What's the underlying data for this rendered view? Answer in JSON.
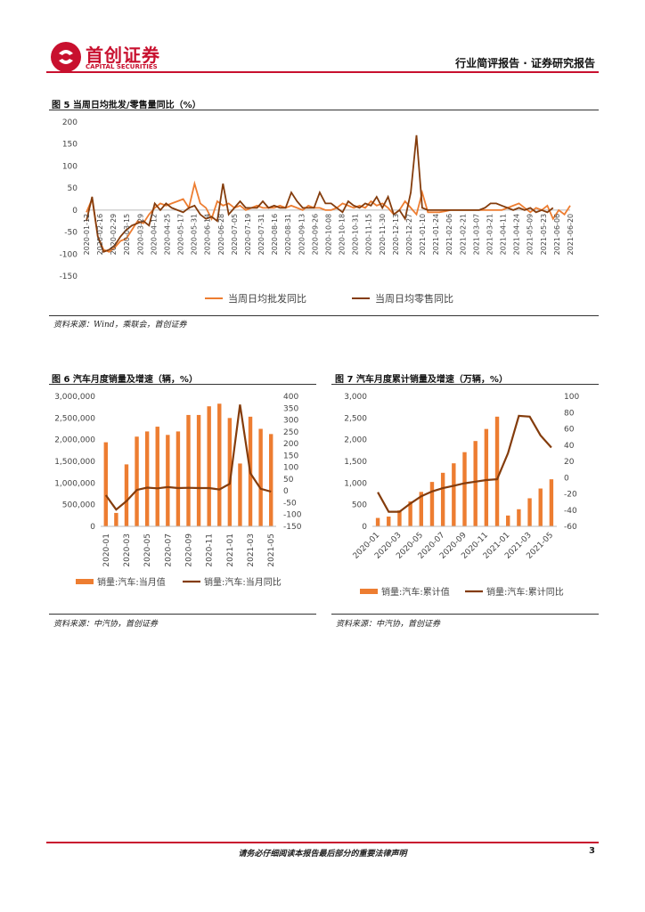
{
  "header": {
    "logo_cn": "首创证券",
    "logo_en": "CAPITAL SECURITIES",
    "report_type": "行业简评报告 · 证券研究报告",
    "brand_color": "#c8102e"
  },
  "colors": {
    "orange": "#ed7d31",
    "brown": "#843c0c"
  },
  "chart_data": [
    {
      "id": "fig5",
      "type": "line",
      "title": "图 5 当周日均批发/零售量同比（%）",
      "source": "资料来源：Wind，乘联会，首创证券",
      "ylim": [
        -150,
        200
      ],
      "yticks": [
        200,
        150,
        100,
        50,
        0,
        -50,
        -100,
        -150
      ],
      "x_tick_labels": [
        "2020-01-12",
        "2020-02-16",
        "2020-02-29",
        "2020-03-15",
        "2020-03-29",
        "2020-04-12",
        "2020-04-25",
        "2020-05-17",
        "2020-05-31",
        "2020-06-14",
        "2020-06-28",
        "2020-07-05",
        "2020-07-19",
        "2020-07-31",
        "2020-08-16",
        "2020-08-31",
        "2020-09-13",
        "2020-09-26",
        "2020-10-08",
        "2020-10-18",
        "2020-10-31",
        "2020-11-15",
        "2020-11-30",
        "2020-12-13",
        "2020-12-27",
        "2021-01-10",
        "2021-01-24",
        "2021-02-06",
        "2021-02-21",
        "2021-03-07",
        "2021-03-21",
        "2021-04-11",
        "2021-04-24",
        "2021-05-09",
        "2021-05-23",
        "2021-06-06",
        "2021-06-20"
      ],
      "series": [
        {
          "name": "当周日均批发同比",
          "color": "#ed7d31",
          "values": [
            -5,
            25,
            -60,
            -90,
            -95,
            -85,
            -70,
            -65,
            -45,
            -25,
            -30,
            -10,
            5,
            15,
            10,
            15,
            20,
            25,
            5,
            60,
            15,
            5,
            -20,
            20,
            10,
            15,
            5,
            10,
            0,
            5,
            10,
            5,
            5,
            5,
            10,
            5,
            10,
            5,
            0,
            10,
            5,
            5,
            0,
            0,
            5,
            15,
            10,
            5,
            10,
            5,
            20,
            10,
            15,
            5,
            -10,
            0,
            20,
            5,
            -10,
            40,
            -5,
            -5,
            -5,
            -3,
            0,
            0,
            0,
            0,
            0,
            0,
            0,
            0,
            0,
            0,
            5,
            10,
            15,
            5,
            -5,
            5,
            0,
            10,
            -20,
            0,
            -10,
            10
          ]
        },
        {
          "name": "当周日均零售同比",
          "color": "#843c0c",
          "values": [
            -25,
            30,
            -60,
            -95,
            -90,
            -80,
            -60,
            -45,
            -35,
            -30,
            -25,
            -35,
            15,
            0,
            15,
            5,
            0,
            -5,
            5,
            10,
            -10,
            -20,
            -15,
            -25,
            60,
            -10,
            5,
            20,
            5,
            5,
            5,
            20,
            5,
            10,
            5,
            5,
            40,
            20,
            5,
            5,
            5,
            40,
            15,
            15,
            5,
            -5,
            20,
            10,
            5,
            15,
            10,
            30,
            5,
            30,
            -10,
            0,
            -20,
            40,
            170,
            5,
            0,
            0,
            0,
            0,
            0,
            0,
            0,
            0,
            0,
            0,
            5,
            15,
            15,
            10,
            5,
            0,
            5,
            0,
            5,
            -5,
            0,
            -5,
            5
          ]
        }
      ]
    },
    {
      "id": "fig6",
      "type": "bar+line",
      "title": "图 6 汽车月度销量及增速（辆，%）",
      "source": "资料来源：中汽协，首创证券",
      "categories": [
        "2020-01",
        "2020-02",
        "2020-03",
        "2020-04",
        "2020-05",
        "2020-06",
        "2020-07",
        "2020-08",
        "2020-09",
        "2020-10",
        "2020-11",
        "2020-12",
        "2021-01",
        "2021-02",
        "2021-03",
        "2021-04",
        "2021-05"
      ],
      "x_tick_labels": [
        "2020-01",
        "2020-03",
        "2020-05",
        "2020-07",
        "2020-09",
        "2020-11",
        "2021-01",
        "2021-03",
        "2021-05"
      ],
      "left_ylim": [
        0,
        3000000
      ],
      "left_yticks": [
        "3,000,000",
        "2,500,000",
        "2,000,000",
        "1,500,000",
        "1,000,000",
        "500,000",
        "0"
      ],
      "right_ylim": [
        -150,
        400
      ],
      "right_yticks": [
        "400",
        "350",
        "300",
        "250",
        "200",
        "150",
        "100",
        "50",
        "0",
        "-50",
        "-100",
        "-150"
      ],
      "series": [
        {
          "name": "销量:汽车:当月值",
          "kind": "bar",
          "axis": "left",
          "color": "#ed7d31",
          "values": [
            1940000,
            310000,
            1430000,
            2070000,
            2190000,
            2300000,
            2110000,
            2190000,
            2570000,
            2570000,
            2770000,
            2830000,
            2500000,
            1450000,
            2530000,
            2250000,
            2130000
          ]
        },
        {
          "name": "销量:汽车:当月同比",
          "kind": "line",
          "axis": "right",
          "color": "#843c0c",
          "values": [
            -18,
            -79,
            -43,
            4,
            14,
            11,
            16,
            12,
            13,
            12,
            12,
            6,
            30,
            365,
            75,
            9,
            -3
          ]
        }
      ]
    },
    {
      "id": "fig7",
      "type": "bar+line",
      "title": "图 7 汽车月度累计销量及增速（万辆，%）",
      "source": "资料来源：中汽协，首创证券",
      "categories": [
        "2020-01",
        "2020-02",
        "2020-03",
        "2020-04",
        "2020-05",
        "2020-06",
        "2020-07",
        "2020-08",
        "2020-09",
        "2020-10",
        "2020-11",
        "2020-12",
        "2021-01",
        "2021-02",
        "2021-03",
        "2021-04",
        "2021-05"
      ],
      "x_tick_labels": [
        "2020-01",
        "2020-03",
        "2020-05",
        "2020-07",
        "2020-09",
        "2020-11",
        "2021-01",
        "2021-03",
        "2021-05"
      ],
      "left_ylim": [
        0,
        3000
      ],
      "left_yticks": [
        "3,000",
        "2,500",
        "2,000",
        "1,500",
        "1,000",
        "500",
        "0"
      ],
      "right_ylim": [
        -60,
        100
      ],
      "right_yticks": [
        "100",
        "80",
        "60",
        "40",
        "20",
        "0",
        "-20",
        "-40",
        "-60"
      ],
      "series": [
        {
          "name": "销量:汽车:累计值",
          "kind": "bar",
          "axis": "left",
          "color": "#ed7d31",
          "values": [
            194,
            226,
            368,
            575,
            795,
            1025,
            1236,
            1455,
            1712,
            1969,
            2247,
            2531,
            250,
            395,
            648,
            873,
            1086
          ]
        },
        {
          "name": "销量:汽车:累计同比",
          "kind": "line",
          "axis": "right",
          "color": "#843c0c",
          "values": [
            -18,
            -42,
            -42,
            -32,
            -23,
            -17,
            -13,
            -10,
            -7,
            -5,
            -3,
            -2,
            30,
            76,
            75,
            52,
            37
          ]
        }
      ]
    }
  ],
  "footer": {
    "disclaimer": "请务必仔细阅读本报告最后部分的重要法律声明",
    "page_number": "3"
  }
}
